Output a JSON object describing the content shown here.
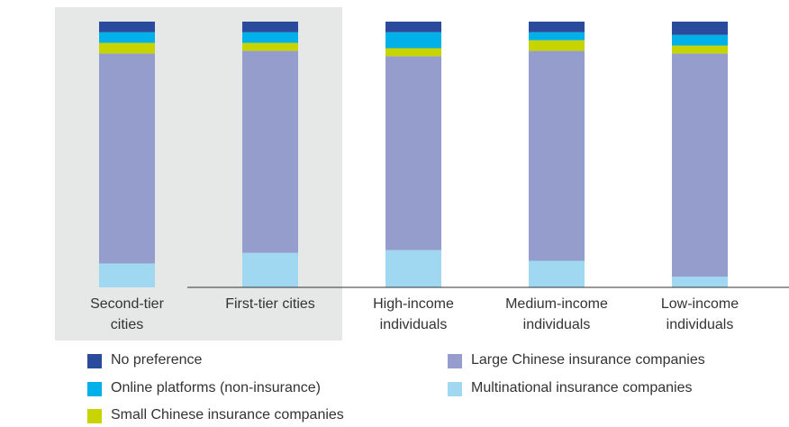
{
  "chart_data": {
    "type": "stacked_bar",
    "categories": [
      "Second-tier cities",
      "First-tier cities",
      "High-income individuals",
      "Medium-income individuals",
      "Low-income individuals"
    ],
    "ylim": [
      0,
      100
    ],
    "series": [
      {
        "name": "Multinational insurance companies",
        "color": "#a0d8f2",
        "values": [
          9,
          13,
          14,
          10,
          4
        ]
      },
      {
        "name": "Large Chinese insurance companies",
        "color": "#959dcc",
        "values": [
          79,
          76,
          73,
          79,
          84
        ]
      },
      {
        "name": "Small Chinese insurance companies",
        "color": "#c8d400",
        "values": [
          4,
          3,
          3,
          4,
          3
        ]
      },
      {
        "name": "Online platforms (non-insurance)",
        "color": "#00b0e8",
        "values": [
          4,
          4,
          6,
          3,
          4
        ]
      },
      {
        "name": "No preference",
        "color": "#2a4a9c",
        "values": [
          4,
          4,
          4,
          4,
          5
        ]
      }
    ]
  }
}
